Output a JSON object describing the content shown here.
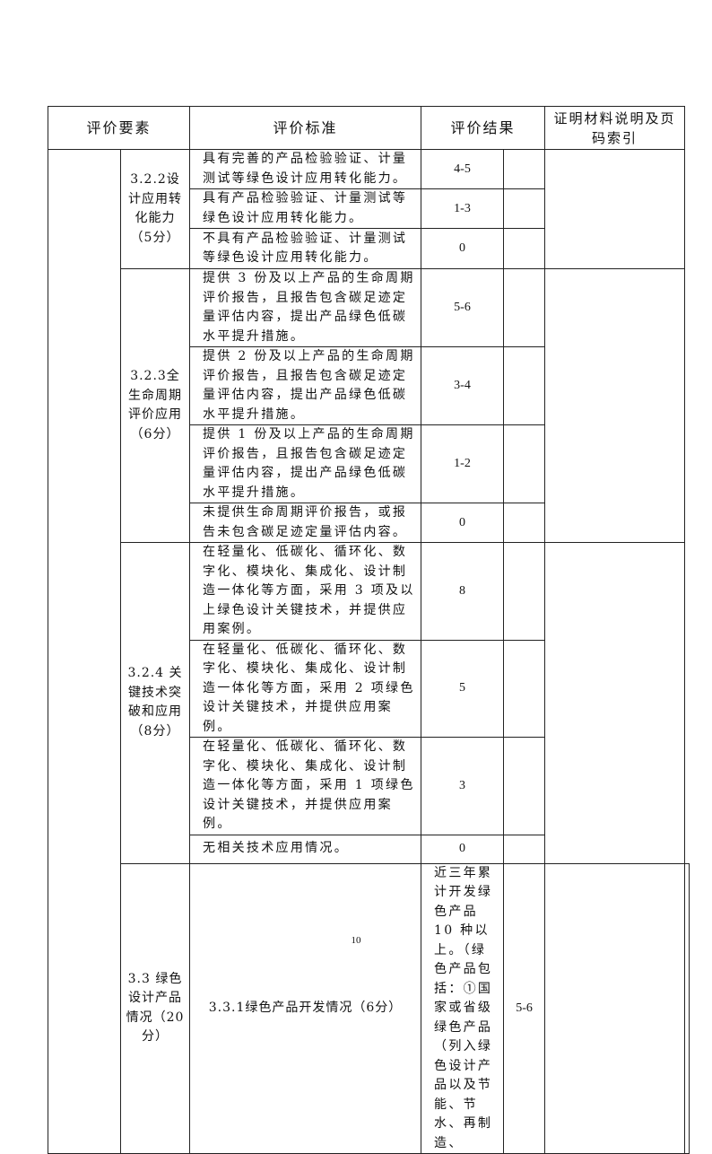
{
  "table": {
    "headers": [
      "评价要素",
      "评价标准",
      "评价结果",
      "证明材料说明及页码索引"
    ],
    "groups": [
      {
        "item": "3.2.2设计应用转化能力（5分）",
        "rows": [
          {
            "criterion": "具有完善的产品检验验证、计量测试等绿色设计应用转化能力。",
            "score": "4-5"
          },
          {
            "criterion": "具有产品检验验证、计量测试等绿色设计应用转化能力。",
            "score": "1-3"
          },
          {
            "criterion": "不具有产品检验验证、计量测试等绿色设计应用转化能力。",
            "score": "0"
          }
        ]
      },
      {
        "item": "3.2.3全生命周期评价应用（6分）",
        "rows": [
          {
            "criterion": "提供 3 份及以上产品的生命周期评价报告，且报告包含碳足迹定量评估内容，提出产品绿色低碳水平提升措施。",
            "score": "5-6"
          },
          {
            "criterion": "提供 2 份及以上产品的生命周期评价报告，且报告包含碳足迹定量评估内容，提出产品绿色低碳水平提升措施。",
            "score": "3-4"
          },
          {
            "criterion": "提供 1 份及以上产品的生命周期评价报告，且报告包含碳足迹定量评估内容，提出产品绿色低碳水平提升措施。",
            "score": "1-2"
          },
          {
            "criterion": "未提供生命周期评价报告，或报告未包含碳足迹定量评估内容。",
            "score": "0"
          }
        ]
      },
      {
        "item": "3.2.4 关键技术突破和应用（8分）",
        "rows": [
          {
            "criterion": "在轻量化、低碳化、循环化、数字化、模块化、集成化、设计制造一体化等方面，采用 3 项及以上绿色设计关键技术，并提供应用案例。",
            "score": "8"
          },
          {
            "criterion": "在轻量化、低碳化、循环化、数字化、模块化、集成化、设计制造一体化等方面，采用 2 项绿色设计关键技术，并提供应用案例。",
            "score": "5"
          },
          {
            "criterion": "在轻量化、低碳化、循环化、数字化、模块化、集成化、设计制造一体化等方面，采用 1 项绿色设计关键技术，并提供应用案例。",
            "score": "3"
          },
          {
            "criterion": "无相关技术应用情况。",
            "score": "0"
          }
        ]
      },
      {
        "group": "3.3 绿色设计产品情况（20分）",
        "item": "3.3.1绿色产品开发情况（6分）",
        "rows": [
          {
            "criterion": "近三年累计开发绿色产品 10 种以上。（绿色产品包括：①国家或省级绿色产品（列入绿色设计产品以及节能、节水、再制造、",
            "score": "5-6"
          }
        ]
      }
    ]
  },
  "page_number": "10"
}
